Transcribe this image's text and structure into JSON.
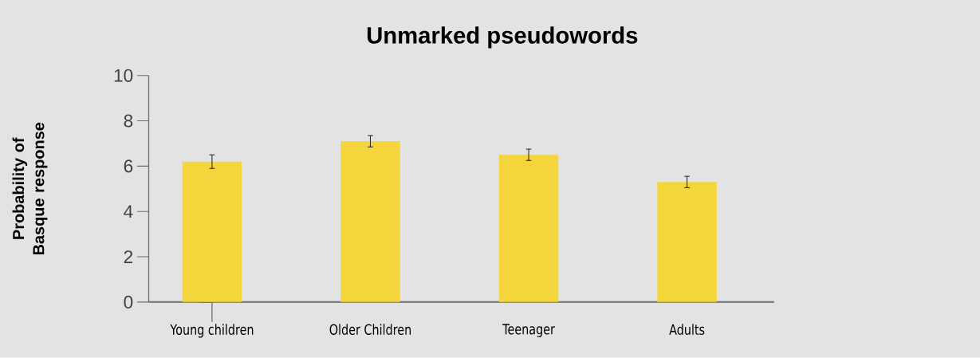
{
  "chart_data": {
    "type": "bar",
    "title": "Unmarked pseudowords",
    "ylabel": "Probability of  Basque response",
    "categories": [
      "Young children",
      "Older Children",
      "Teenager",
      "Adults"
    ],
    "values": [
      6.2,
      7.1,
      6.5,
      5.3
    ],
    "errors": [
      0.3,
      0.25,
      0.25,
      0.25
    ],
    "color": "#f4d63c",
    "ylim": [
      0,
      10
    ],
    "yticks": [
      0,
      2,
      4,
      6,
      8,
      10
    ]
  }
}
